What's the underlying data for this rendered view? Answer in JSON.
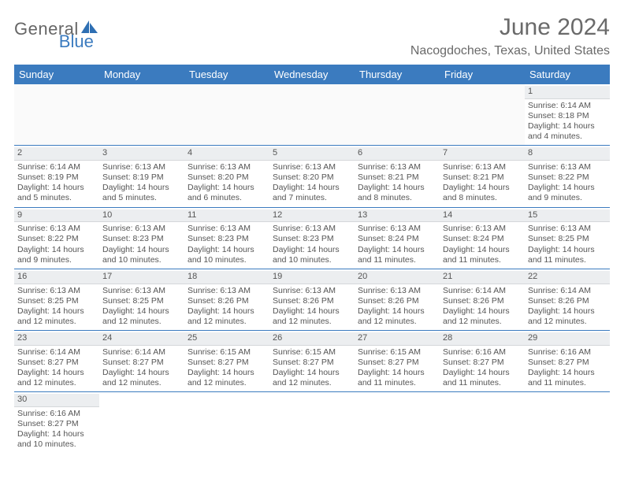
{
  "brand": {
    "word1": "General",
    "word2": "Blue"
  },
  "title": "June 2024",
  "location": "Nacogdoches, Texas, United States",
  "dayNames": [
    "Sunday",
    "Monday",
    "Tuesday",
    "Wednesday",
    "Thursday",
    "Friday",
    "Saturday"
  ],
  "colors": {
    "headerBg": "#3b7bbf",
    "headerText": "#ffffff",
    "cellText": "#555555",
    "titleText": "#6a6a6a",
    "dayNumBg": "#eceef0",
    "weekBorder": "#3b7bbf"
  },
  "fonts": {
    "title_pt": 30,
    "location_pt": 16,
    "dayHeader_pt": 13,
    "cell_pt": 10.5,
    "dayNum_pt": 11
  },
  "weeks": [
    [
      null,
      null,
      null,
      null,
      null,
      null,
      {
        "d": "1",
        "sr": "6:14 AM",
        "ss": "8:18 PM",
        "dl": "14 hours and 4 minutes."
      }
    ],
    [
      {
        "d": "2",
        "sr": "6:14 AM",
        "ss": "8:19 PM",
        "dl": "14 hours and 5 minutes."
      },
      {
        "d": "3",
        "sr": "6:13 AM",
        "ss": "8:19 PM",
        "dl": "14 hours and 5 minutes."
      },
      {
        "d": "4",
        "sr": "6:13 AM",
        "ss": "8:20 PM",
        "dl": "14 hours and 6 minutes."
      },
      {
        "d": "5",
        "sr": "6:13 AM",
        "ss": "8:20 PM",
        "dl": "14 hours and 7 minutes."
      },
      {
        "d": "6",
        "sr": "6:13 AM",
        "ss": "8:21 PM",
        "dl": "14 hours and 8 minutes."
      },
      {
        "d": "7",
        "sr": "6:13 AM",
        "ss": "8:21 PM",
        "dl": "14 hours and 8 minutes."
      },
      {
        "d": "8",
        "sr": "6:13 AM",
        "ss": "8:22 PM",
        "dl": "14 hours and 9 minutes."
      }
    ],
    [
      {
        "d": "9",
        "sr": "6:13 AM",
        "ss": "8:22 PM",
        "dl": "14 hours and 9 minutes."
      },
      {
        "d": "10",
        "sr": "6:13 AM",
        "ss": "8:23 PM",
        "dl": "14 hours and 10 minutes."
      },
      {
        "d": "11",
        "sr": "6:13 AM",
        "ss": "8:23 PM",
        "dl": "14 hours and 10 minutes."
      },
      {
        "d": "12",
        "sr": "6:13 AM",
        "ss": "8:23 PM",
        "dl": "14 hours and 10 minutes."
      },
      {
        "d": "13",
        "sr": "6:13 AM",
        "ss": "8:24 PM",
        "dl": "14 hours and 11 minutes."
      },
      {
        "d": "14",
        "sr": "6:13 AM",
        "ss": "8:24 PM",
        "dl": "14 hours and 11 minutes."
      },
      {
        "d": "15",
        "sr": "6:13 AM",
        "ss": "8:25 PM",
        "dl": "14 hours and 11 minutes."
      }
    ],
    [
      {
        "d": "16",
        "sr": "6:13 AM",
        "ss": "8:25 PM",
        "dl": "14 hours and 12 minutes."
      },
      {
        "d": "17",
        "sr": "6:13 AM",
        "ss": "8:25 PM",
        "dl": "14 hours and 12 minutes."
      },
      {
        "d": "18",
        "sr": "6:13 AM",
        "ss": "8:26 PM",
        "dl": "14 hours and 12 minutes."
      },
      {
        "d": "19",
        "sr": "6:13 AM",
        "ss": "8:26 PM",
        "dl": "14 hours and 12 minutes."
      },
      {
        "d": "20",
        "sr": "6:13 AM",
        "ss": "8:26 PM",
        "dl": "14 hours and 12 minutes."
      },
      {
        "d": "21",
        "sr": "6:14 AM",
        "ss": "8:26 PM",
        "dl": "14 hours and 12 minutes."
      },
      {
        "d": "22",
        "sr": "6:14 AM",
        "ss": "8:26 PM",
        "dl": "14 hours and 12 minutes."
      }
    ],
    [
      {
        "d": "23",
        "sr": "6:14 AM",
        "ss": "8:27 PM",
        "dl": "14 hours and 12 minutes."
      },
      {
        "d": "24",
        "sr": "6:14 AM",
        "ss": "8:27 PM",
        "dl": "14 hours and 12 minutes."
      },
      {
        "d": "25",
        "sr": "6:15 AM",
        "ss": "8:27 PM",
        "dl": "14 hours and 12 minutes."
      },
      {
        "d": "26",
        "sr": "6:15 AM",
        "ss": "8:27 PM",
        "dl": "14 hours and 12 minutes."
      },
      {
        "d": "27",
        "sr": "6:15 AM",
        "ss": "8:27 PM",
        "dl": "14 hours and 11 minutes."
      },
      {
        "d": "28",
        "sr": "6:16 AM",
        "ss": "8:27 PM",
        "dl": "14 hours and 11 minutes."
      },
      {
        "d": "29",
        "sr": "6:16 AM",
        "ss": "8:27 PM",
        "dl": "14 hours and 11 minutes."
      }
    ],
    [
      {
        "d": "30",
        "sr": "6:16 AM",
        "ss": "8:27 PM",
        "dl": "14 hours and 10 minutes."
      },
      null,
      null,
      null,
      null,
      null,
      null
    ]
  ],
  "labels": {
    "sunrise": "Sunrise: ",
    "sunset": "Sunset: ",
    "daylight": "Daylight: "
  }
}
